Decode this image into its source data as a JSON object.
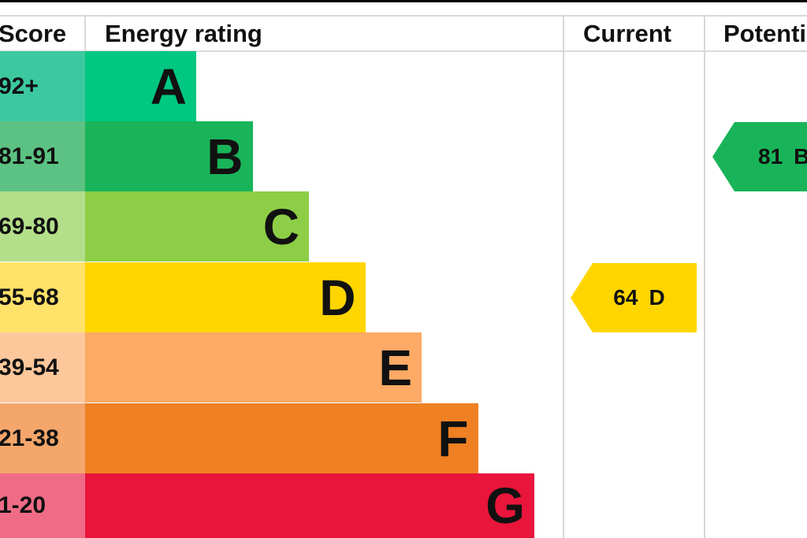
{
  "header": {
    "score": "Score",
    "rating": "Energy rating",
    "current": "Current",
    "potential": "Potential"
  },
  "bands": [
    {
      "range": "92+",
      "letter": "A",
      "color": "#00c781",
      "score_color": "#3cc9a0"
    },
    {
      "range": "81-91",
      "letter": "B",
      "color": "#19b459",
      "score_color": "#5cc283"
    },
    {
      "range": "69-80",
      "letter": "C",
      "color": "#8dce46",
      "score_color": "#b3de8a"
    },
    {
      "range": "55-68",
      "letter": "D",
      "color": "#ffd500",
      "score_color": "#ffe26a"
    },
    {
      "range": "39-54",
      "letter": "E",
      "color": "#fcaa65",
      "score_color": "#fdc79c"
    },
    {
      "range": "21-38",
      "letter": "F",
      "color": "#ef8023",
      "score_color": "#f4a66b"
    },
    {
      "range": "1-20",
      "letter": "G",
      "color": "#e9153b",
      "score_color": "#f06c86"
    }
  ],
  "current": {
    "value": 64,
    "letter": "D",
    "color": "#ffd500"
  },
  "potential": {
    "value": 81,
    "letter": "B",
    "color": "#19b459"
  }
}
